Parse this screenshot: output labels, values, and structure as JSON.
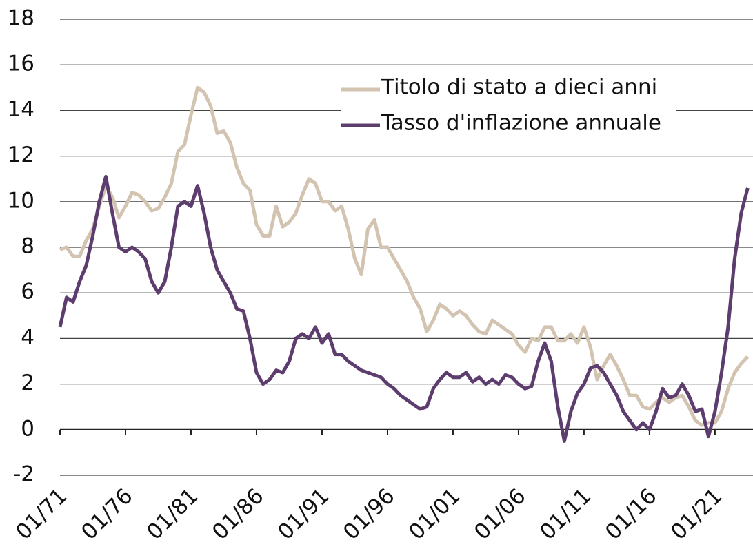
{
  "chart_data": {
    "type": "line",
    "x": [
      1971,
      1971.5,
      1972,
      1972.5,
      1973,
      1973.5,
      1974,
      1974.5,
      1975,
      1975.5,
      1976,
      1976.5,
      1977,
      1977.5,
      1978,
      1978.5,
      1979,
      1979.5,
      1980,
      1980.5,
      1981,
      1981.5,
      1982,
      1982.5,
      1983,
      1983.5,
      1984,
      1984.5,
      1985,
      1985.5,
      1986,
      1986.5,
      1987,
      1987.5,
      1988,
      1988.5,
      1989,
      1989.5,
      1990,
      1990.5,
      1991,
      1991.5,
      1992,
      1992.5,
      1993,
      1993.5,
      1994,
      1994.5,
      1995,
      1995.5,
      1996,
      1996.5,
      1997,
      1997.5,
      1998,
      1998.5,
      1999,
      1999.5,
      2000,
      2000.5,
      2001,
      2001.5,
      2002,
      2002.5,
      2003,
      2003.5,
      2004,
      2004.5,
      2005,
      2005.5,
      2006,
      2006.5,
      2007,
      2007.5,
      2008,
      2008.5,
      2009,
      2009.5,
      2010,
      2010.5,
      2011,
      2011.5,
      2012,
      2012.5,
      2013,
      2013.5,
      2014,
      2014.5,
      2015,
      2015.5,
      2016,
      2016.5,
      2017,
      2017.5,
      2018,
      2018.5,
      2019,
      2019.5,
      2020,
      2020.5,
      2021,
      2021.5,
      2022,
      2022.5,
      2023,
      2023.5
    ],
    "series": [
      {
        "name": "Titolo di stato a dieci anni",
        "color": "#d3c3b1",
        "values": [
          7.9,
          8.0,
          7.6,
          7.6,
          8.3,
          8.8,
          9.8,
          10.7,
          10.2,
          9.3,
          9.8,
          10.4,
          10.3,
          10.0,
          9.6,
          9.7,
          10.2,
          10.8,
          12.2,
          12.5,
          13.8,
          15.0,
          14.8,
          14.2,
          13.0,
          13.1,
          12.6,
          11.5,
          10.8,
          10.5,
          9.0,
          8.5,
          8.5,
          9.8,
          8.9,
          9.1,
          9.5,
          10.3,
          11.0,
          10.8,
          10.0,
          10.0,
          9.6,
          9.8,
          8.8,
          7.5,
          6.8,
          8.8,
          9.2,
          8.0,
          8.0,
          7.5,
          7.0,
          6.5,
          5.8,
          5.3,
          4.3,
          4.8,
          5.5,
          5.3,
          5.0,
          5.2,
          5.0,
          4.6,
          4.3,
          4.2,
          4.8,
          4.6,
          4.4,
          4.2,
          3.7,
          3.4,
          4.0,
          3.9,
          4.5,
          4.5,
          3.9,
          3.9,
          4.2,
          3.8,
          4.5,
          3.6,
          2.2,
          2.8,
          3.3,
          2.8,
          2.2,
          1.5,
          1.5,
          1.0,
          0.9,
          1.2,
          1.4,
          1.2,
          1.4,
          1.5,
          1.0,
          0.4,
          0.2,
          0.3,
          0.3,
          0.8,
          1.8,
          2.5,
          2.9,
          3.2
        ]
      },
      {
        "name": "Tasso d'inflazione annuale",
        "color": "#5c3d6e",
        "values": [
          4.5,
          5.8,
          5.6,
          6.5,
          7.2,
          8.5,
          10.0,
          11.1,
          9.5,
          8.0,
          7.8,
          8.0,
          7.8,
          7.5,
          6.5,
          6.0,
          6.5,
          8.0,
          9.8,
          10.0,
          9.8,
          10.7,
          9.5,
          8.0,
          7.0,
          6.5,
          6.0,
          5.3,
          5.2,
          4.0,
          2.5,
          2.0,
          2.2,
          2.6,
          2.5,
          3.0,
          4.0,
          4.2,
          4.0,
          4.5,
          3.8,
          4.2,
          3.3,
          3.3,
          3.0,
          2.8,
          2.6,
          2.5,
          2.4,
          2.3,
          2.0,
          1.8,
          1.5,
          1.3,
          1.1,
          0.9,
          1.0,
          1.8,
          2.2,
          2.5,
          2.3,
          2.3,
          2.5,
          2.1,
          2.3,
          2.0,
          2.2,
          2.0,
          2.4,
          2.3,
          2.0,
          1.8,
          1.9,
          3.0,
          3.8,
          3.0,
          1.0,
          -0.5,
          0.8,
          1.6,
          2.0,
          2.7,
          2.8,
          2.5,
          2.0,
          1.5,
          0.8,
          0.4,
          0.0,
          0.3,
          0.0,
          0.8,
          1.8,
          1.4,
          1.5,
          2.0,
          1.5,
          0.8,
          0.9,
          -0.3,
          0.8,
          2.5,
          4.5,
          7.5,
          9.5,
          10.6
        ]
      }
    ],
    "xlim": [
      1971,
      2023.9
    ],
    "xticks": [
      {
        "value": 1971,
        "label": "01/71"
      },
      {
        "value": 1976,
        "label": "01/76"
      },
      {
        "value": 1981,
        "label": "01/81"
      },
      {
        "value": 1986,
        "label": "01/86"
      },
      {
        "value": 1991,
        "label": "01/91"
      },
      {
        "value": 1996,
        "label": "01/96"
      },
      {
        "value": 2001,
        "label": "01/01"
      },
      {
        "value": 2006,
        "label": "01/06"
      },
      {
        "value": 2011,
        "label": "01/11"
      },
      {
        "value": 2016,
        "label": "01/16"
      },
      {
        "value": 2021,
        "label": "01/21"
      }
    ],
    "ylim": [
      -2,
      18
    ],
    "yticks": [
      -2,
      0,
      2,
      4,
      6,
      8,
      10,
      12,
      14,
      16,
      18
    ],
    "grid": true,
    "legend": "upper right"
  }
}
